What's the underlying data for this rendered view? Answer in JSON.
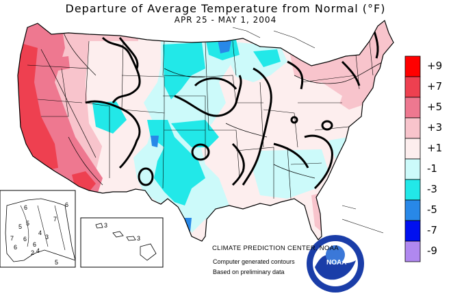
{
  "title": "Departure of Average Temperature from Normal (°F)",
  "subtitle": "APR 25 - MAY  1, 2004",
  "credits": {
    "main": "CLIMATE PREDICTION CENTER, NOAA",
    "line2": "Computer generated contours",
    "line3": "Based on preliminary data"
  },
  "logo_text": "NOAA",
  "legend": [
    {
      "label": "+9",
      "color": "#ff0000"
    },
    {
      "label": "+7",
      "color": "#ee4050"
    },
    {
      "label": "+5",
      "color": "#ee7890"
    },
    {
      "label": "+3",
      "color": "#f8c4cc"
    },
    {
      "label": "+1",
      "color": "#fdeeee"
    },
    {
      "label": "-1",
      "color": "#ccfafa"
    },
    {
      "label": "-3",
      "color": "#22e8e8"
    },
    {
      "label": "-5",
      "color": "#2888e8"
    },
    {
      "label": "-7",
      "color": "#0010f0"
    },
    {
      "label": "-9",
      "color": "#b088f0"
    }
  ],
  "alaska_labels": [
    "6",
    "6",
    "7",
    "5",
    "4",
    "6",
    "6",
    "4",
    "3",
    "5",
    "2",
    "7",
    "6",
    "5"
  ],
  "hawaii_labels": [
    "3",
    "3"
  ],
  "colors": {
    "outline": "#000000",
    "warm_strong": "#ee4050",
    "warm_moderate": "#ee7890",
    "warm_light": "#f8c4cc",
    "warm_faint": "#fdeeee",
    "cool_faint": "#ccfafa",
    "cool_moderate": "#22e8e8",
    "cool_strong": "#2888e8"
  }
}
